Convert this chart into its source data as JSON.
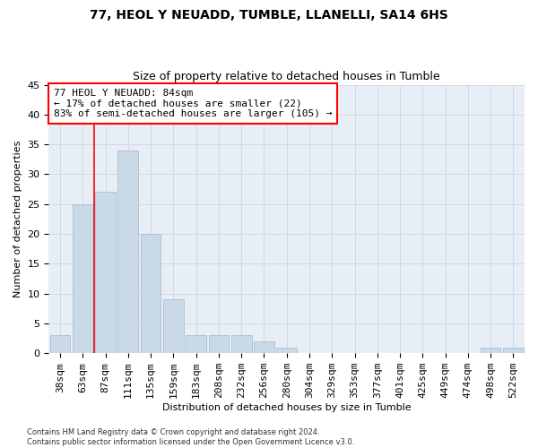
{
  "title1": "77, HEOL Y NEUADD, TUMBLE, LLANELLI, SA14 6HS",
  "title2": "Size of property relative to detached houses in Tumble",
  "xlabel": "Distribution of detached houses by size in Tumble",
  "ylabel": "Number of detached properties",
  "categories": [
    "38sqm",
    "63sqm",
    "87sqm",
    "111sqm",
    "135sqm",
    "159sqm",
    "183sqm",
    "208sqm",
    "232sqm",
    "256sqm",
    "280sqm",
    "304sqm",
    "329sqm",
    "353sqm",
    "377sqm",
    "401sqm",
    "425sqm",
    "449sqm",
    "474sqm",
    "498sqm",
    "522sqm"
  ],
  "values": [
    3,
    25,
    27,
    34,
    20,
    9,
    3,
    3,
    3,
    2,
    1,
    0,
    0,
    0,
    0,
    0,
    0,
    0,
    0,
    1,
    1
  ],
  "bar_color": "#c9d9e8",
  "bar_edge_color": "#a0b8cc",
  "grid_color": "#d0d8e8",
  "background_color": "#e8eef5",
  "annotation_text": "77 HEOL Y NEUADD: 84sqm\n← 17% of detached houses are smaller (22)\n83% of semi-detached houses are larger (105) →",
  "annotation_box_color": "white",
  "annotation_border_color": "red",
  "vline_x": 1.5,
  "vline_color": "red",
  "ylim": [
    0,
    45
  ],
  "yticks": [
    0,
    5,
    10,
    15,
    20,
    25,
    30,
    35,
    40,
    45
  ],
  "footer": "Contains HM Land Registry data © Crown copyright and database right 2024.\nContains public sector information licensed under the Open Government Licence v3.0.",
  "title1_fontsize": 10,
  "title2_fontsize": 9,
  "xlabel_fontsize": 8,
  "ylabel_fontsize": 8,
  "tick_fontsize": 8,
  "ann_fontsize": 8
}
